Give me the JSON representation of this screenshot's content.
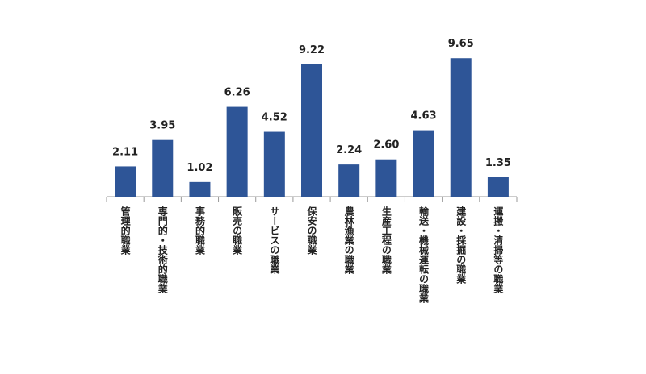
{
  "chart_data": {
    "type": "bar",
    "categories": [
      "管理的職業",
      "専門的・技術的職業",
      "事務的職業",
      "販売の職業",
      "サービスの職業",
      "保安の職業",
      "農林漁業の職業",
      "生産工程の職業",
      "輸送・機械運転の職業",
      "建設・採掘の職業",
      "運搬・清掃等の職業"
    ],
    "values": [
      2.11,
      3.95,
      1.02,
      6.26,
      4.52,
      9.22,
      2.24,
      2.6,
      4.63,
      9.65,
      1.35
    ],
    "value_labels": [
      "2.11",
      "3.95",
      "1.02",
      "6.26",
      "4.52",
      "9.22",
      "2.24",
      "2.60",
      "4.63",
      "9.65",
      "1.35"
    ],
    "color": "#2e5597",
    "ylim": [
      0,
      10
    ]
  }
}
